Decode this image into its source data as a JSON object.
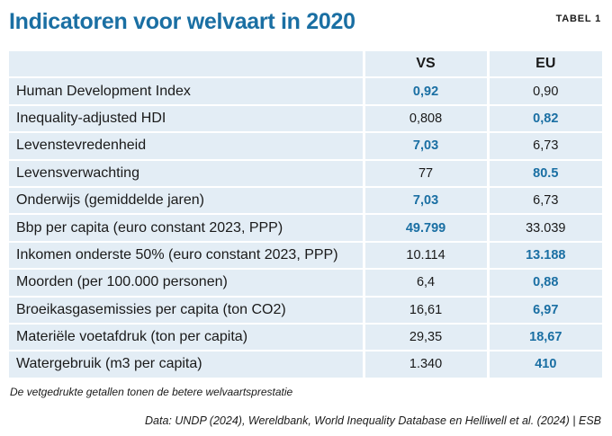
{
  "title": "Indicatoren voor welvaart in 2020",
  "table_label": "TABEL 1",
  "columns": [
    "",
    "VS",
    "EU"
  ],
  "best_color": "#1a6fa3",
  "rows": [
    {
      "label": "Human Development Index",
      "vs": "0,92",
      "eu": "0,90",
      "best": "vs"
    },
    {
      "label": "Inequality-adjusted HDI",
      "vs": "0,808",
      "eu": "0,82",
      "best": "eu"
    },
    {
      "label": "Levenstevredenheid",
      "vs": "7,03",
      "eu": "6,73",
      "best": "vs"
    },
    {
      "label": "Levensverwachting",
      "vs": "77",
      "eu": "80.5",
      "best": "eu"
    },
    {
      "label": "Onderwijs (gemiddelde jaren)",
      "vs": "7,03",
      "eu": "6,73",
      "best": "vs"
    },
    {
      "label": "Bbp per capita (euro constant 2023, PPP)",
      "vs": "49.799",
      "eu": "33.039",
      "best": "vs"
    },
    {
      "label": "Inkomen onderste 50% (euro constant 2023, PPP)",
      "vs": "10.114",
      "eu": "13.188",
      "best": "eu"
    },
    {
      "label": "Moorden (per 100.000 personen)",
      "vs": "6,4",
      "eu": "0,88",
      "best": "eu"
    },
    {
      "label": "Broeikasgasemissies per capita (ton CO2)",
      "vs": "16,61",
      "eu": "6,97",
      "best": "eu"
    },
    {
      "label": "Materiële voetafdruk (ton per capita)",
      "vs": "29,35",
      "eu": "18,67",
      "best": "eu"
    },
    {
      "label": "Watergebruik (m3 per capita)",
      "vs": "1.340",
      "eu": "410",
      "best": "eu"
    }
  ],
  "note": "De vetgedrukte getallen tonen de betere welvaartsprestatie",
  "source": "Data: UNDP (2024), Wereldbank, World Inequality Database en Helliwell et al. (2024) | ESB"
}
